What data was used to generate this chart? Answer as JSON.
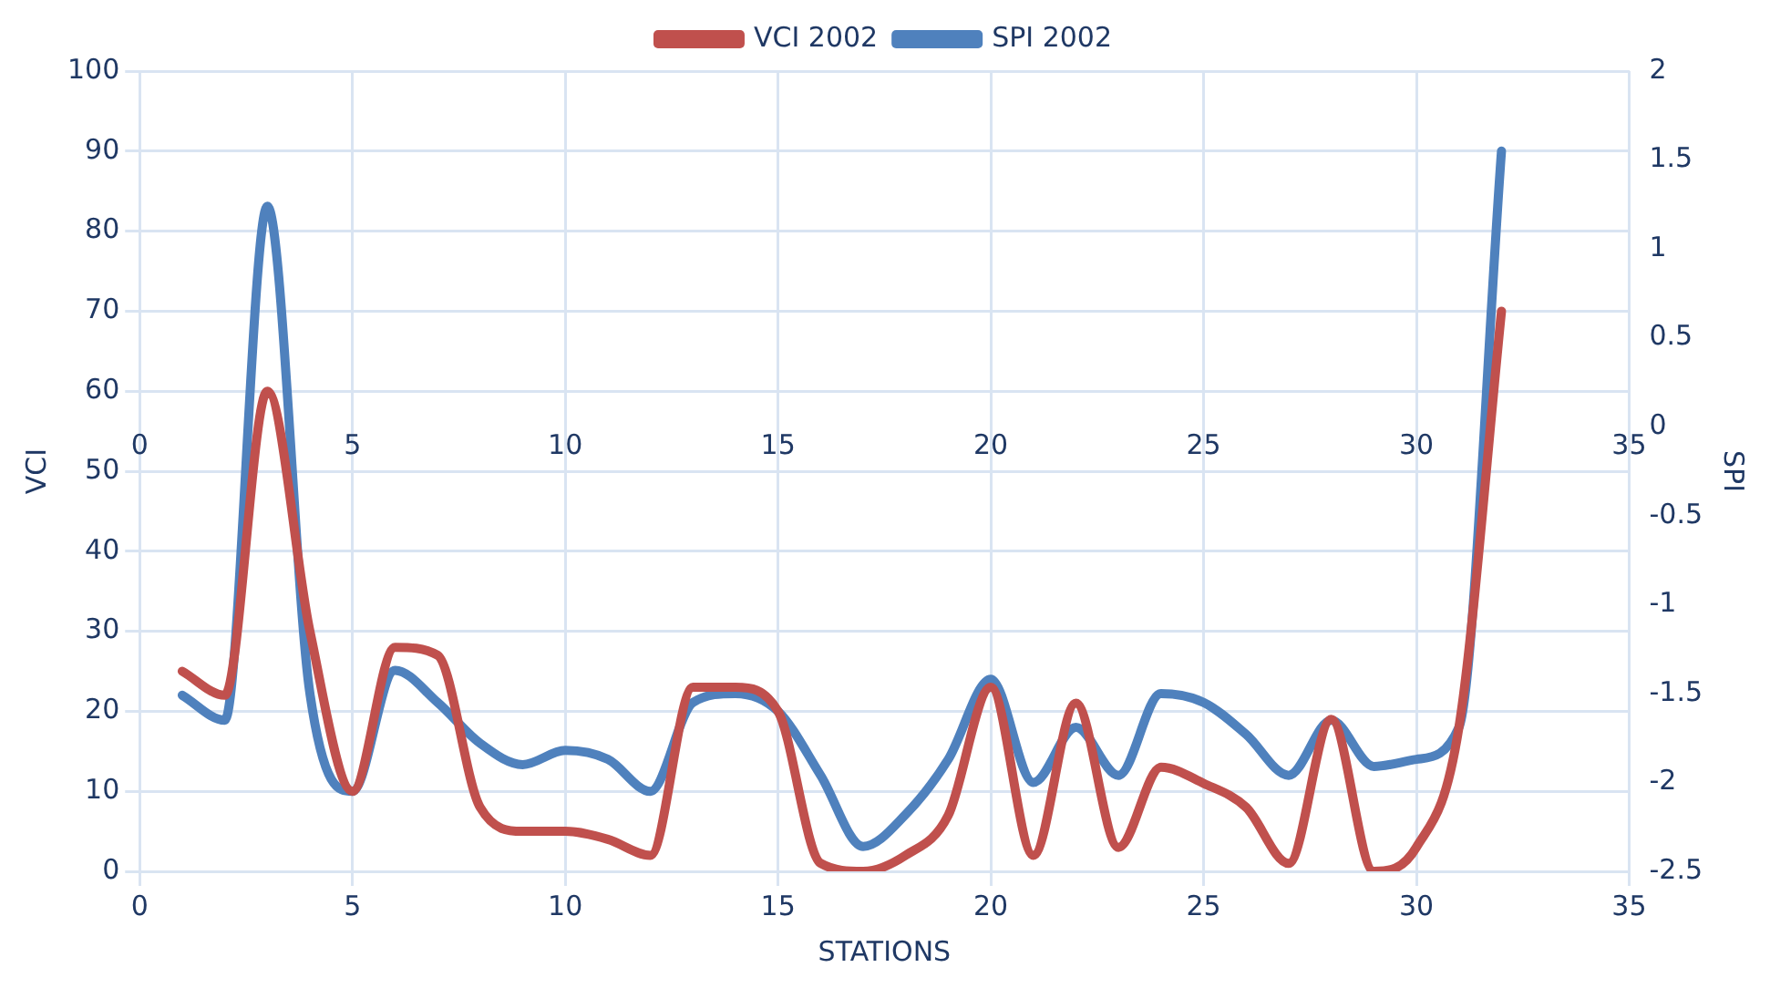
{
  "chart_data": {
    "type": "line",
    "xlabel": "STATIONS",
    "ylabel": "VCI",
    "y2label": "SPI",
    "x": [
      1,
      2,
      3,
      4,
      5,
      6,
      7,
      8,
      9,
      10,
      11,
      12,
      13,
      14,
      15,
      16,
      17,
      18,
      19,
      20,
      21,
      22,
      23,
      24,
      25,
      26,
      27,
      28,
      29,
      30,
      31,
      32
    ],
    "series": [
      {
        "name": "VCI 2002",
        "color": "#c0504d",
        "values": [
          25,
          22,
          60,
          30,
          10,
          28,
          27,
          8,
          5,
          5,
          4,
          2,
          23,
          23,
          20,
          1,
          0,
          2,
          7,
          23,
          2,
          21,
          3,
          13,
          11,
          8,
          1,
          19,
          0,
          3,
          18,
          70
        ]
      },
      {
        "name": "SPI 2002",
        "color": "#4f81bd",
        "axis": "y2",
        "values": [
          -1.51,
          -1.65,
          1.24,
          -1.5,
          -2.05,
          -1.37,
          -1.55,
          -1.78,
          -1.9,
          -1.82,
          -1.87,
          -2.05,
          -1.55,
          -1.5,
          -1.6,
          -1.96,
          -2.36,
          -2.18,
          -1.87,
          -1.42,
          -2.0,
          -1.69,
          -1.96,
          -1.5,
          -1.55,
          -1.73,
          -1.96,
          -1.65,
          -1.91,
          -1.87,
          -1.69,
          1.55
        ]
      }
    ],
    "xlim": [
      0,
      35
    ],
    "xticks": [
      0,
      5,
      10,
      15,
      20,
      25,
      30,
      35
    ],
    "x2lim": [
      0,
      35
    ],
    "x2ticks": [
      0,
      5,
      10,
      15,
      20,
      25,
      30,
      35
    ],
    "ylim": [
      0,
      100
    ],
    "yticks": [
      0,
      10,
      20,
      30,
      40,
      50,
      60,
      70,
      80,
      90,
      100
    ],
    "y2lim": [
      -2.5,
      2
    ],
    "y2ticks": [
      -2.5,
      -2,
      -1.5,
      -1,
      -0.5,
      0,
      0.5,
      1,
      1.5,
      2
    ],
    "grid": true,
    "legend": "top",
    "marker": "none",
    "line_style": "solid"
  }
}
